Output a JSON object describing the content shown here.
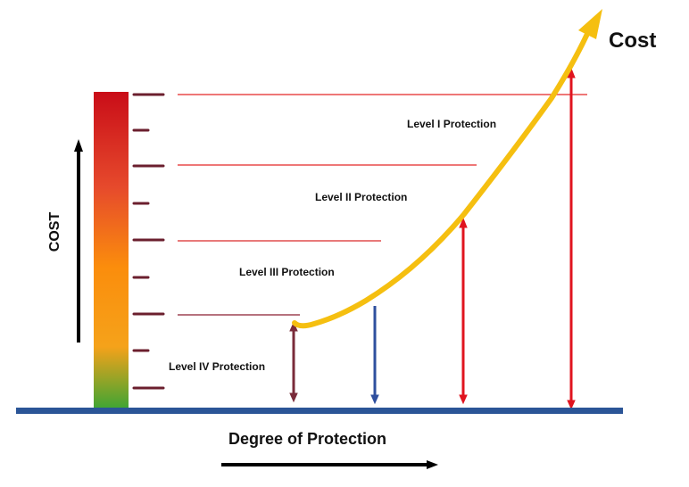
{
  "diagram": {
    "cost_corner_label": "Cost",
    "cost_axis_label": "COST",
    "x_axis_label": "Degree of Protection",
    "levels": [
      {
        "label": "Level I Protection"
      },
      {
        "label": "Level II Protection"
      },
      {
        "label": "Level III Protection"
      },
      {
        "label": "Level IV Protection"
      }
    ],
    "colors": {
      "baseline": "#2b5597",
      "curve": "#f5bf10",
      "threshold_line": "#e32626",
      "threshold_line_low": "#8a1f32",
      "tick": "#6b1f2e",
      "arrow_level_iv": "#7a2b3a",
      "arrow_level_iii": "#2e4f9e",
      "arrow_level_ii": "#e0141f",
      "arrow_level_i": "#e0141f",
      "gradient_top": "#c90d18",
      "gradient_mid": "#fb8d0c",
      "gradient_bottom": "#3aa534"
    },
    "icons": {
      "cost_arrow": "up-arrow-icon",
      "degree_arrow": "right-arrow-icon"
    }
  }
}
